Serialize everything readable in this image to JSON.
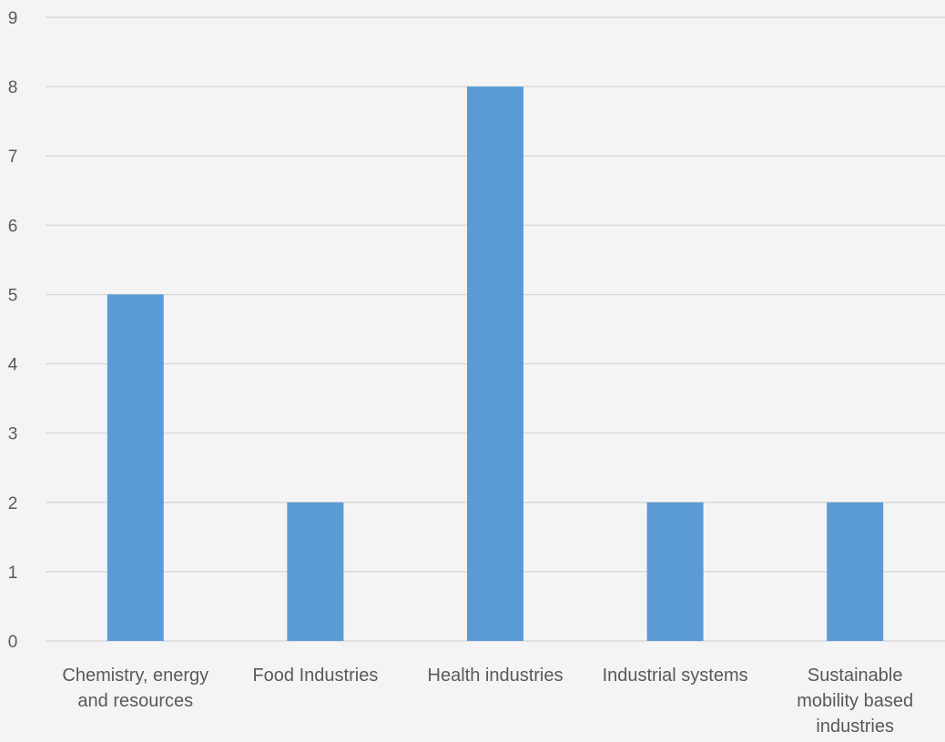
{
  "colors": {
    "background": "#f4f4f4",
    "bar": "#5b9bd5",
    "gridline": "#d9d9d9",
    "text": "#595959"
  },
  "chart_data": {
    "type": "bar",
    "title": "",
    "xlabel": "",
    "ylabel": "",
    "categories": [
      "Chemistry, energy and resources",
      "Food Industries",
      "Health industries",
      "Industrial systems",
      "Sustainable mobility based industries"
    ],
    "values": [
      5,
      2,
      8,
      2,
      2
    ],
    "ylim": [
      0,
      9
    ],
    "yticks": [
      "0",
      "1",
      "2",
      "3",
      "4",
      "5",
      "6",
      "7",
      "8",
      "9"
    ],
    "grid": true,
    "legend": "none"
  }
}
